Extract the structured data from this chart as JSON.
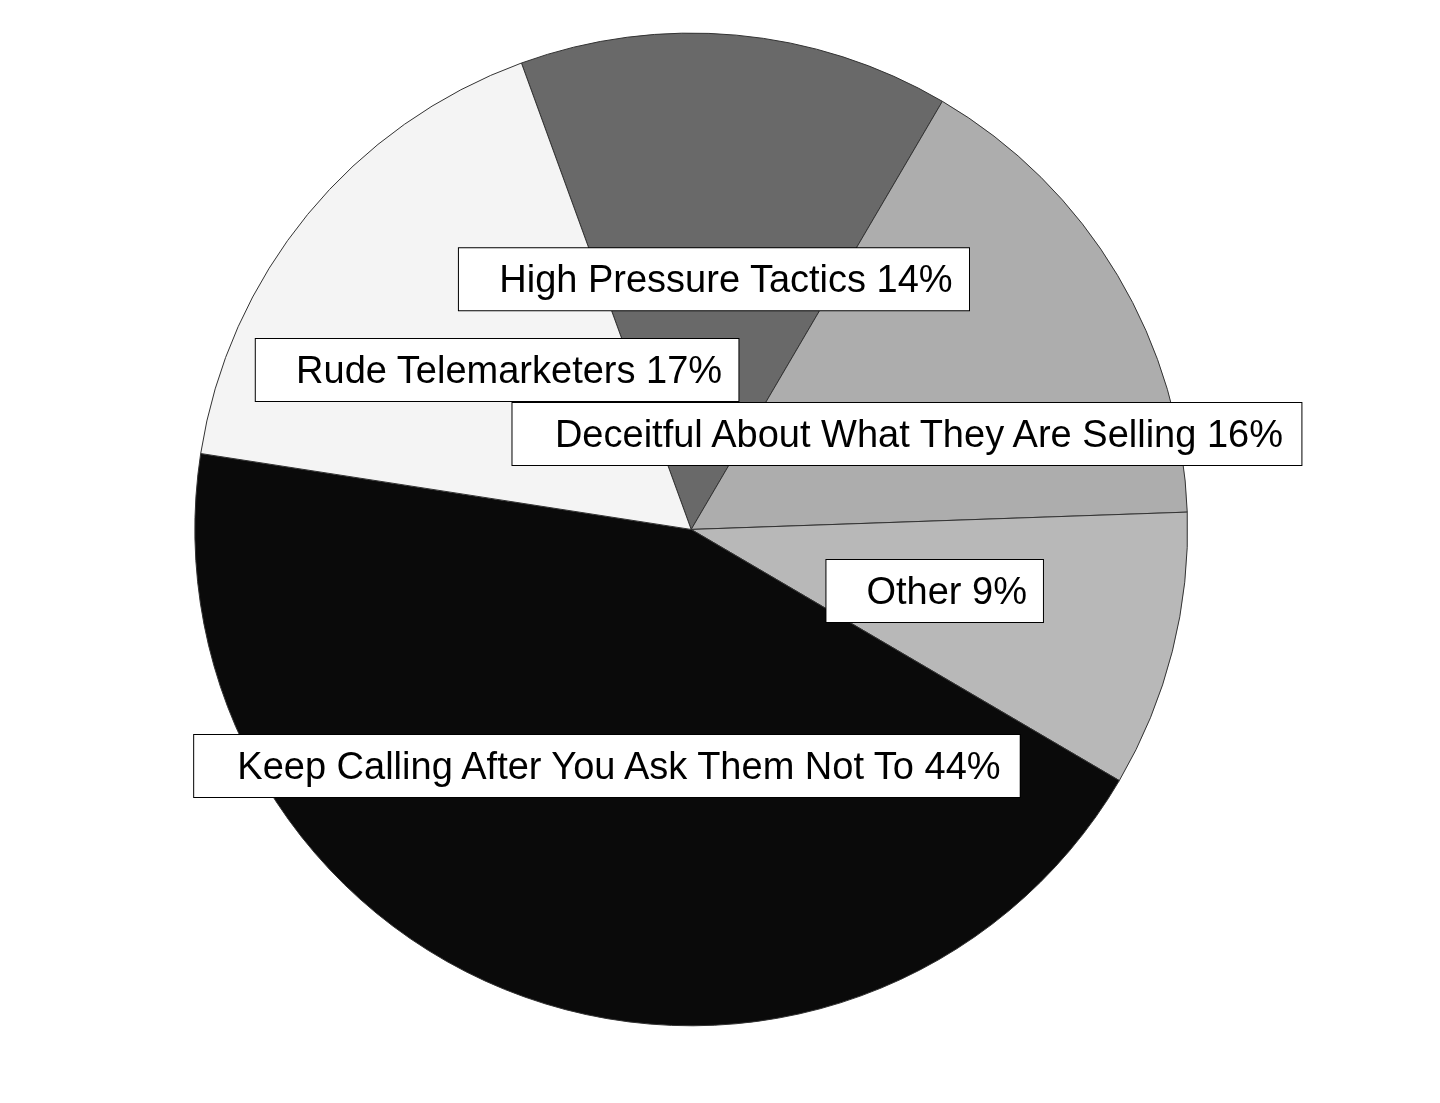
{
  "chart_data": {
    "type": "pie",
    "categories": [
      "High Pressure Tactics",
      "Deceitful About What They Are Selling",
      "Other",
      "Keep Calling After You Ask Them Not To",
      "Rude Telemarketers"
    ],
    "values": [
      14,
      16,
      9,
      44,
      17
    ],
    "value_labels": [
      "14%",
      "16%",
      "9%",
      "44%",
      "17%"
    ],
    "colors": [
      "#696969",
      "#adadad",
      "#b8b8b8",
      "#0a0a0a",
      "#f4f4f4"
    ],
    "legend": false
  }
}
